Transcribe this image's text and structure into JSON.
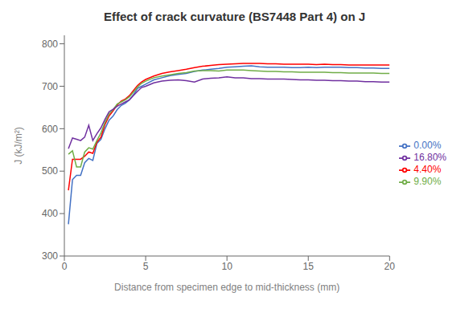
{
  "chart_data": {
    "type": "line",
    "title": "Effect of crack curvature (BS7448 Part 4) on J",
    "xlabel": "Distance from specimen  edge to mid-thickness (mm)",
    "ylabel": "J (kJ/m²)",
    "xlim": [
      0,
      20
    ],
    "ylim": [
      300,
      820
    ],
    "xticks": [
      0,
      5,
      10,
      15,
      20
    ],
    "yticks": [
      300,
      400,
      500,
      600,
      700,
      800
    ],
    "grid": false,
    "legend": "right",
    "x": [
      0.25,
      0.5,
      0.75,
      1.0,
      1.25,
      1.5,
      1.75,
      2.0,
      2.25,
      2.5,
      2.75,
      3.0,
      3.25,
      3.5,
      3.75,
      4.0,
      4.25,
      4.5,
      4.75,
      5.0,
      5.5,
      6.0,
      6.5,
      7.0,
      7.5,
      8.0,
      8.5,
      9.0,
      9.5,
      10.0,
      10.5,
      11.0,
      11.5,
      12.0,
      12.5,
      13.0,
      13.5,
      14.0,
      14.5,
      15.0,
      15.5,
      16.0,
      16.5,
      17.0,
      17.5,
      18.0,
      18.5,
      19.0,
      19.5,
      20.0
    ],
    "series": [
      {
        "name": "0.00%",
        "color": "#4472C4",
        "values": [
          375,
          480,
          490,
          490,
          520,
          530,
          525,
          565,
          575,
          600,
          620,
          630,
          645,
          655,
          660,
          668,
          680,
          695,
          700,
          705,
          715,
          720,
          725,
          728,
          730,
          735,
          738,
          740,
          742,
          745,
          746,
          747,
          748,
          746,
          745,
          745,
          745,
          744,
          744,
          745,
          744,
          745,
          745,
          745,
          744,
          744,
          743,
          743,
          742,
          742
        ]
      },
      {
        "name": "4.40%",
        "color": "#FF0000",
        "values": [
          455,
          528,
          528,
          528,
          535,
          545,
          542,
          568,
          580,
          610,
          630,
          642,
          656,
          665,
          670,
          678,
          690,
          702,
          710,
          716,
          724,
          730,
          734,
          737,
          740,
          744,
          747,
          749,
          751,
          752,
          753,
          754,
          754,
          754,
          753,
          753,
          752,
          752,
          752,
          752,
          751,
          752,
          751,
          751,
          750,
          750,
          750,
          750,
          750,
          750
        ]
      },
      {
        "name": "9.90%",
        "color": "#70AD47",
        "values": [
          540,
          548,
          510,
          510,
          545,
          555,
          552,
          572,
          590,
          615,
          635,
          645,
          658,
          663,
          668,
          675,
          686,
          698,
          707,
          712,
          720,
          724,
          727,
          730,
          732,
          736,
          737,
          737,
          736,
          738,
          738,
          738,
          737,
          736,
          735,
          735,
          734,
          734,
          733,
          733,
          733,
          733,
          732,
          732,
          731,
          731,
          731,
          731,
          730,
          730
        ]
      },
      {
        "name": "16.80%",
        "color": "#7030A0",
        "values": [
          553,
          578,
          575,
          572,
          580,
          608,
          572,
          588,
          602,
          622,
          640,
          646,
          653,
          658,
          663,
          668,
          678,
          688,
          697,
          700,
          708,
          712,
          714,
          715,
          713,
          710,
          717,
          719,
          720,
          722,
          720,
          720,
          718,
          718,
          717,
          717,
          717,
          716,
          715,
          715,
          714,
          714,
          713,
          713,
          712,
          712,
          711,
          711,
          710,
          710
        ]
      }
    ]
  }
}
